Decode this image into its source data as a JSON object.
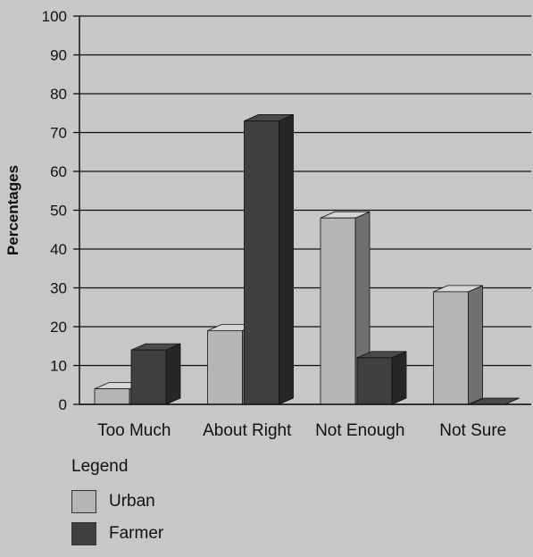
{
  "chart_data": {
    "type": "bar",
    "title": "",
    "xlabel": "",
    "ylabel": "Percentages",
    "ylim": [
      0,
      100
    ],
    "yticks": [
      0,
      10,
      20,
      30,
      40,
      50,
      60,
      70,
      80,
      90,
      100
    ],
    "grid": true,
    "categories": [
      "Too Much",
      "About Right",
      "Not Enough",
      "Not Sure"
    ],
    "series": [
      {
        "name": "Urban",
        "values": [
          4,
          19,
          48,
          29
        ],
        "color": "#b5b5b5"
      },
      {
        "name": "Farmer",
        "values": [
          14,
          73,
          12,
          0
        ],
        "color": "#3f3f3f"
      }
    ],
    "legend": {
      "title": "Legend",
      "placement": "bottom-left"
    }
  }
}
